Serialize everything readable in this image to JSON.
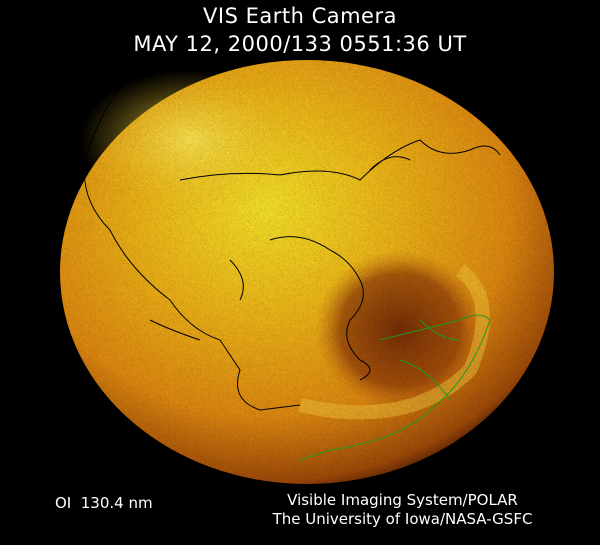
{
  "header": {
    "title": "VIS Earth Camera",
    "timestamp": "MAY 12, 2000/133 0551:36 UT"
  },
  "footer": {
    "band": "OI  130.4 nm",
    "credit_line1": "Visible Imaging System/POLAR",
    "credit_line2": "The University of Iowa/NASA-GSFC"
  },
  "colors": {
    "background": "#000000",
    "bright_glow": "#f8e020",
    "mid_glow": "#e08a10",
    "dark_oval": "#7a2a05",
    "coastline_land": "#000000",
    "coastline_night": "#1f9a1f"
  }
}
